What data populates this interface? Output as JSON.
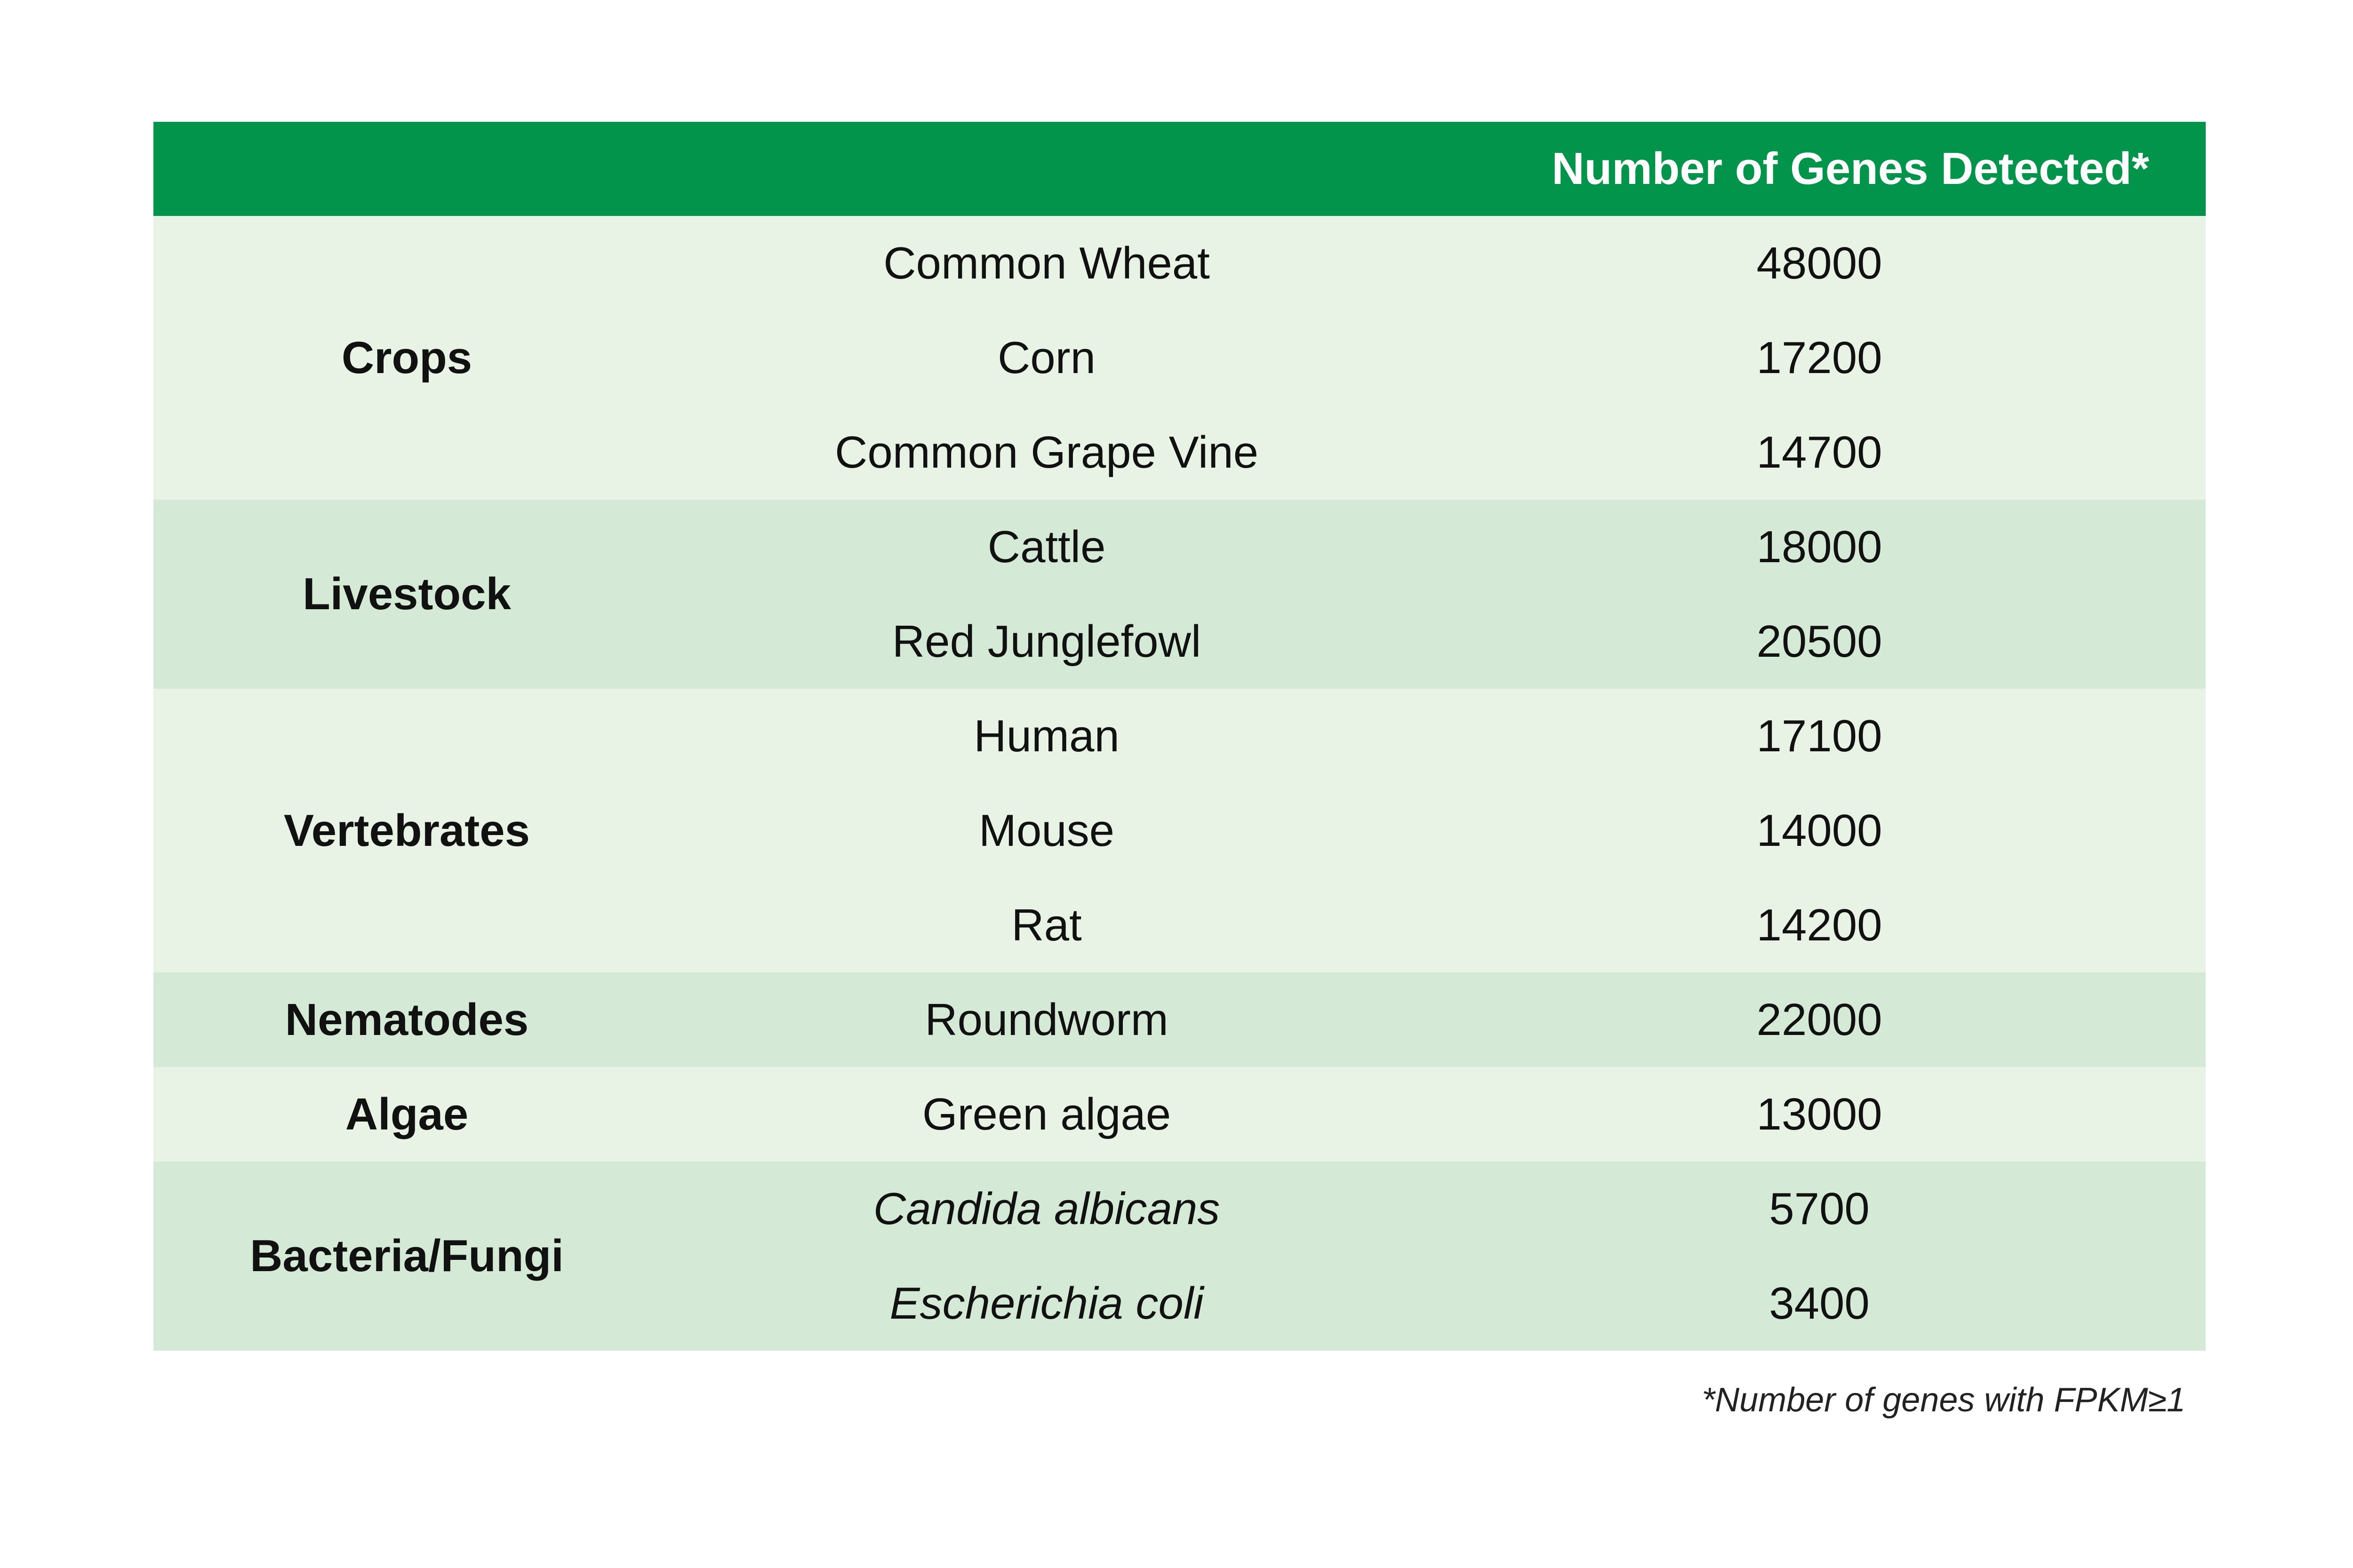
{
  "table": {
    "headers": {
      "category": "",
      "organism": "",
      "count": "Number of Genes Detected*"
    },
    "groups": [
      {
        "category": "Crops",
        "rows": [
          {
            "organism": "Common Wheat",
            "count": "48000"
          },
          {
            "organism": "Corn",
            "count": "17200"
          },
          {
            "organism": "Common Grape Vine",
            "count": "14700"
          }
        ]
      },
      {
        "category": "Livestock",
        "rows": [
          {
            "organism": "Cattle",
            "count": "18000"
          },
          {
            "organism": "Red Junglefowl",
            "count": "20500"
          }
        ]
      },
      {
        "category": "Vertebrates",
        "rows": [
          {
            "organism": "Human",
            "count": "17100"
          },
          {
            "organism": "Mouse",
            "count": "14000"
          },
          {
            "organism": "Rat",
            "count": "14200"
          }
        ]
      },
      {
        "category": "Nematodes",
        "rows": [
          {
            "organism": "Roundworm",
            "count": "22000"
          }
        ]
      },
      {
        "category": "Algae",
        "rows": [
          {
            "organism": "Green algae",
            "count": "13000"
          }
        ]
      },
      {
        "category": "Bacteria/Fungi",
        "rows": [
          {
            "organism": "Candida albicans",
            "count": "5700"
          },
          {
            "organism": "Escherichia coli",
            "count": "3400"
          }
        ]
      }
    ]
  },
  "footnote": "*Number of genes with FPKM≥1",
  "colors": {
    "header_bg": "#02944a",
    "header_text": "#ffffff",
    "row_light": "#e8f2e5",
    "row_dark": "#d5ead6",
    "text": "#111111"
  }
}
